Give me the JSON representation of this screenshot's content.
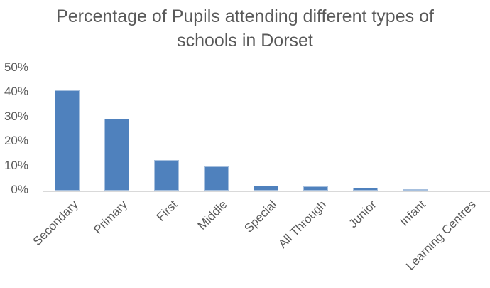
{
  "chart_data": {
    "type": "bar",
    "title": "Percentage of Pupils attending different types of schools in Dorset",
    "title_lines": [
      "Percentage of Pupils attending different types of",
      "schools in Dorset"
    ],
    "xlabel": "",
    "ylabel": "",
    "categories": [
      "Secondary",
      "Primary",
      "First",
      "Middle",
      "Special",
      "All Through",
      "Junior",
      "Infant",
      "Learning Centres"
    ],
    "values": [
      41.0,
      29.5,
      12.5,
      10.0,
      1.9,
      1.6,
      1.3,
      0.6,
      0.0
    ],
    "value_unit": "%",
    "ylim": [
      0,
      50
    ],
    "yticks": [
      "0%",
      "10%",
      "20%",
      "30%",
      "40%",
      "50%"
    ],
    "grid": false,
    "legend": null,
    "bar_color": "#4f81bd"
  }
}
